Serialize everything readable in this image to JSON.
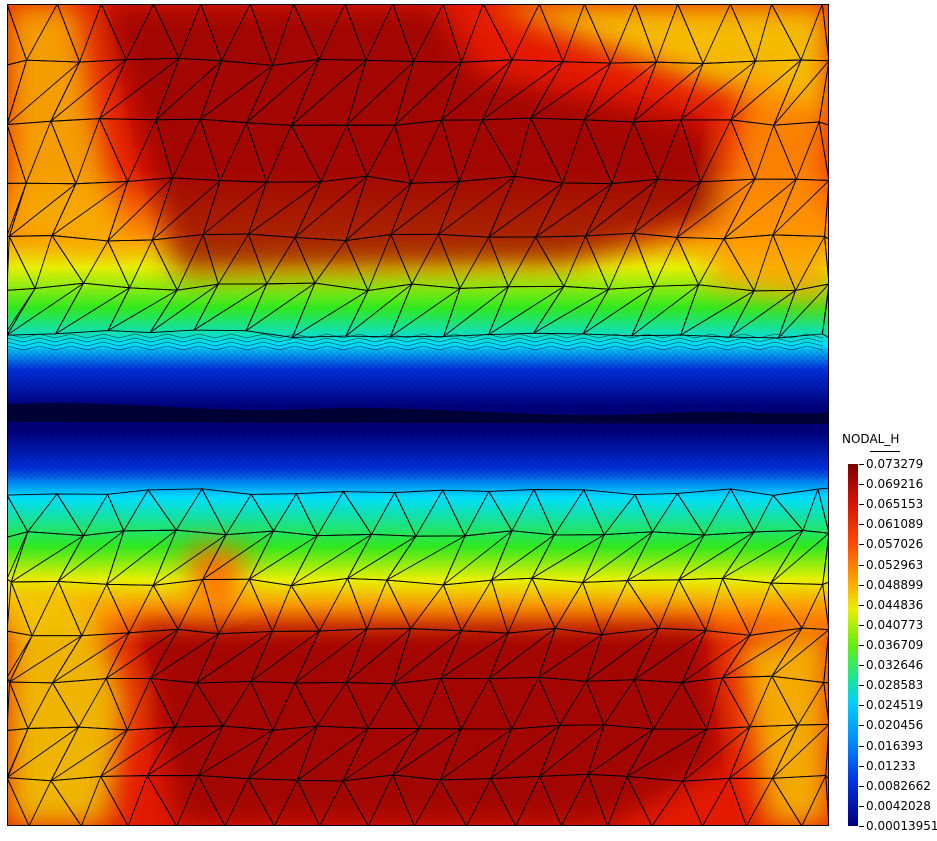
{
  "legend": {
    "title": "NODAL_H",
    "labels": [
      "0.073279",
      "0.069216",
      "0.065153",
      "0.061089",
      "0.057026",
      "0.052963",
      "0.048899",
      "0.044836",
      "0.040773",
      "0.036709",
      "0.032646",
      "0.028583",
      "0.024519",
      "0.020456",
      "0.016393",
      "0.01233",
      "0.0082662",
      "0.0042028",
      "0.00013951"
    ]
  },
  "colors": {
    "max": "#7f0000",
    "high": "#d01000",
    "orange": "#ff8a00",
    "yellow": "#e8ef00",
    "green": "#30e820",
    "cyan": "#00dcff",
    "blue": "#0030e0",
    "min": "#00007f",
    "mesh": "#000000"
  }
}
